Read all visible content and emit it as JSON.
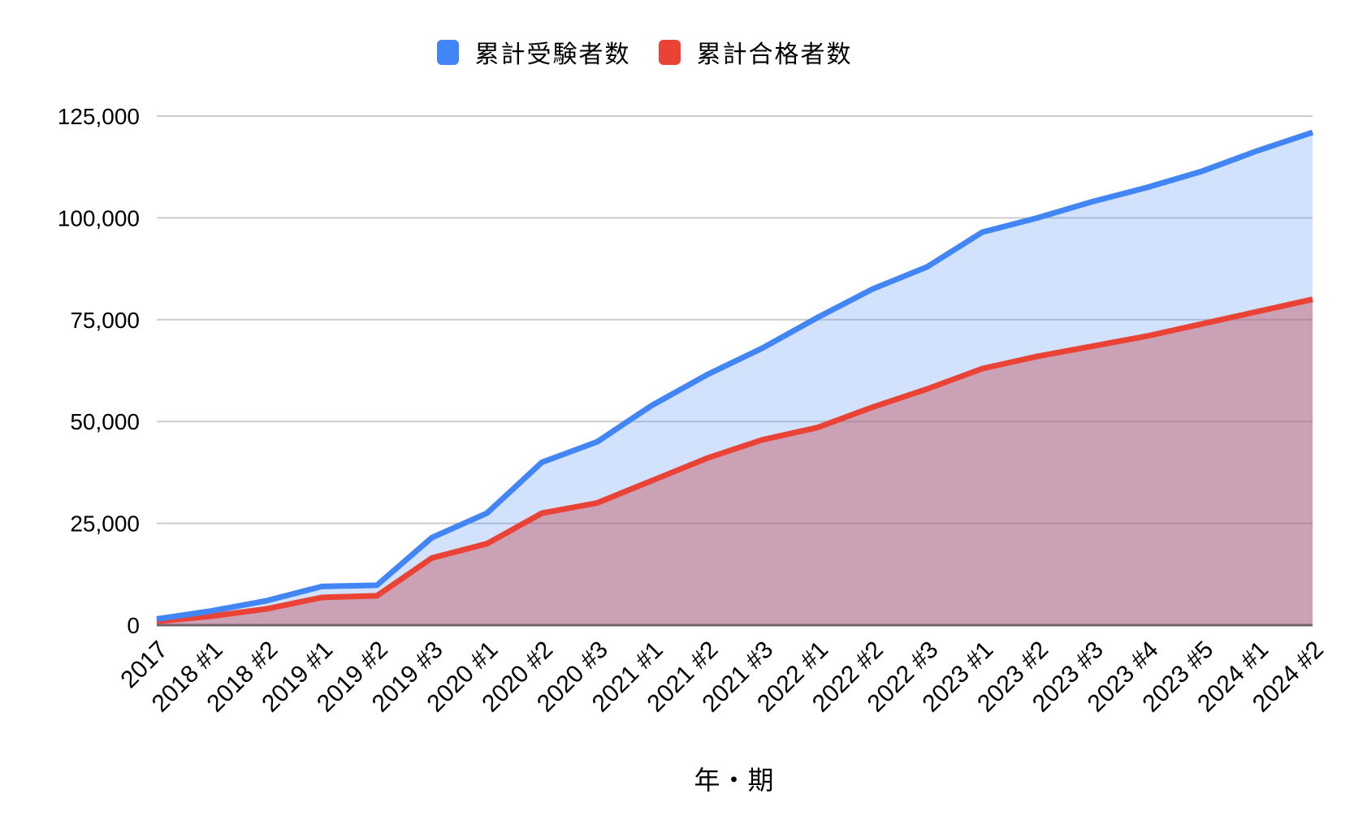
{
  "chart_data": {
    "type": "area",
    "title": "",
    "xlabel": "年・期",
    "ylabel": "",
    "ylim": [
      0,
      125000
    ],
    "y_ticks": [
      0,
      25000,
      50000,
      75000,
      100000,
      125000
    ],
    "grid": true,
    "legend_position": "top",
    "categories": [
      "2017",
      "2018 #1",
      "2018 #2",
      "2019 #1",
      "2019 #2",
      "2019 #3",
      "2020 #1",
      "2020 #2",
      "2020 #3",
      "2021 #1",
      "2021 #2",
      "2021 #3",
      "2022 #1",
      "2022 #2",
      "2022 #3",
      "2023 #1",
      "2023 #2",
      "2023 #3",
      "2023 #4",
      "2023 #5",
      "2024 #1",
      "2024 #2"
    ],
    "series": [
      {
        "name": "累計受験者数",
        "color": "#4285F4",
        "values": [
          1500,
          3500,
          6000,
          9500,
          9800,
          21500,
          27500,
          40000,
          45000,
          54000,
          61500,
          68000,
          75500,
          82500,
          88000,
          96500,
          100000,
          104000,
          107500,
          111500,
          116500,
          121000
        ]
      },
      {
        "name": "累計合格者数",
        "color": "#EA4335",
        "values": [
          900,
          2200,
          4000,
          6800,
          7200,
          16500,
          20000,
          27500,
          30000,
          35500,
          41000,
          45500,
          48500,
          53500,
          58000,
          63000,
          66000,
          68500,
          71000,
          74000,
          77000,
          80000
        ]
      }
    ],
    "colors": {
      "gridline": "#cccccc",
      "baseline": "#616161",
      "label_text": "#000000"
    }
  }
}
